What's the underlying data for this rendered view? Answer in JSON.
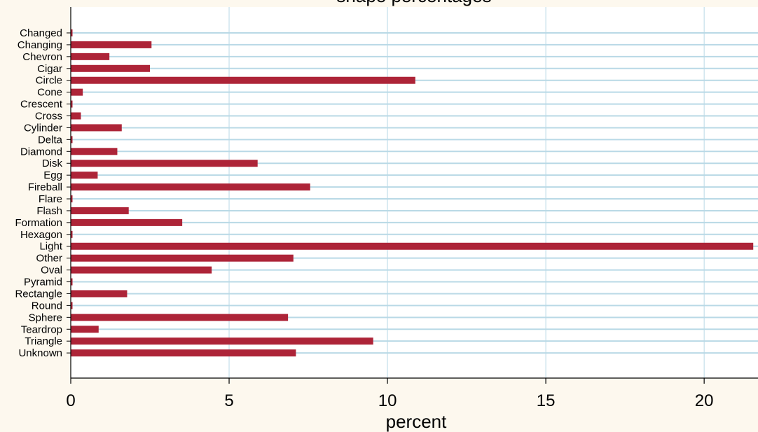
{
  "chart_data": {
    "type": "bar",
    "orientation": "horizontal",
    "title": "shape percentages",
    "xlabel": "percent",
    "ylabel": "",
    "xlim": [
      0,
      21.7
    ],
    "xticks": [
      0,
      5,
      10,
      15,
      20
    ],
    "grid": true,
    "legend": "none",
    "colors": {
      "bar": "#ad2438",
      "grid": "#b9d9e6",
      "background": "#fdf8ee",
      "plot_background": "#ffffff"
    },
    "categories": [
      "Changed",
      "Changing",
      "Chevron",
      "Cigar",
      "Circle",
      "Cone",
      "Crescent",
      "Cross",
      "Cylinder",
      "Delta",
      "Diamond",
      "Disk",
      "Egg",
      "Fireball",
      "Flare",
      "Flash",
      "Formation",
      "Hexagon",
      "Light",
      "Other",
      "Oval",
      "Pyramid",
      "Rectangle",
      "Round",
      "Sphere",
      "Teardrop",
      "Triangle",
      "Unknown"
    ],
    "values": [
      0.01,
      2.55,
      1.22,
      2.5,
      10.88,
      0.38,
      0.01,
      0.32,
      1.61,
      0.01,
      1.47,
      5.9,
      0.85,
      7.56,
      0.01,
      1.83,
      3.52,
      0.01,
      21.55,
      7.03,
      4.45,
      0.02,
      1.78,
      0.01,
      6.86,
      0.88,
      9.55,
      7.11
    ]
  }
}
